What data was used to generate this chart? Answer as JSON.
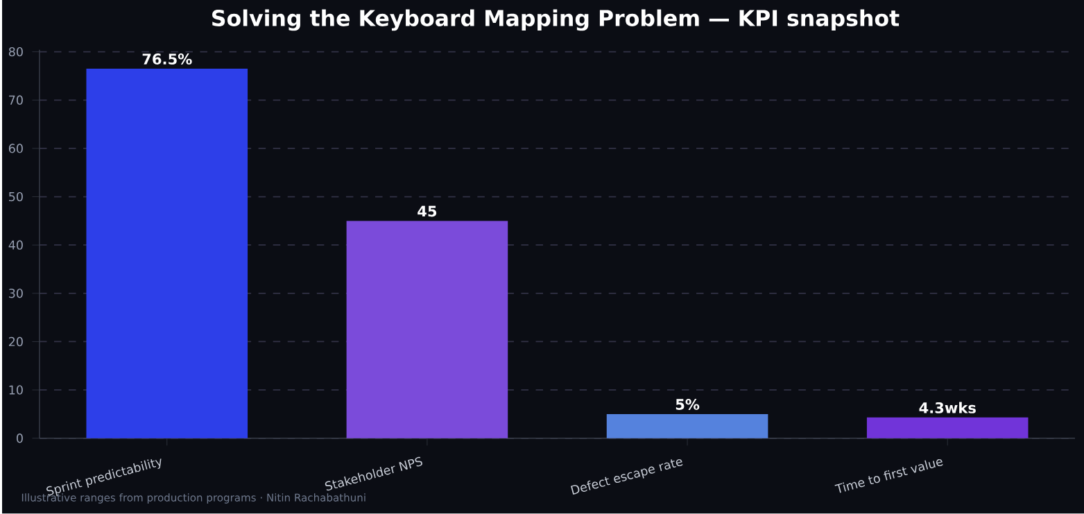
{
  "chart_data": {
    "type": "bar",
    "title": "Solving the Keyboard Mapping Problem — KPI snapshot",
    "categories": [
      "Sprint predictability",
      "Stakeholder NPS",
      "Defect escape rate",
      "Time to first value"
    ],
    "values": [
      76.5,
      45,
      5,
      4.3
    ],
    "colors": [
      "#2d3fe9",
      "#7b4bda",
      "#5582dd",
      "#7134d9"
    ],
    "value_labels": [
      "76.5%",
      "45",
      "5%",
      "4.3wks"
    ],
    "ylim": [
      0,
      80.4
    ],
    "yticks": [
      0,
      10,
      20,
      30,
      40,
      50,
      60,
      70,
      80
    ],
    "grid": "y",
    "annotations": [
      "Illustrative ranges from production programs · Nitin Rachabathuni"
    ]
  }
}
